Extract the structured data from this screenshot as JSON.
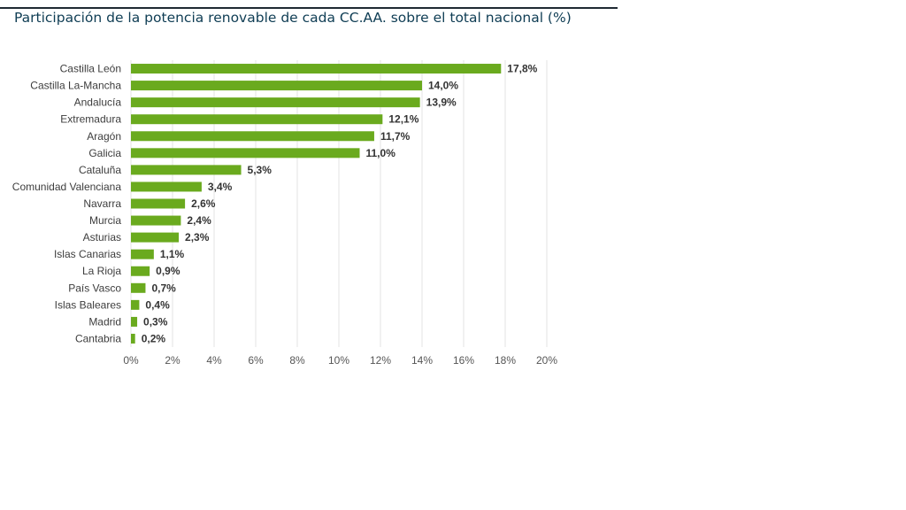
{
  "chart_data": {
    "type": "bar",
    "orientation": "horizontal",
    "title": "Participación de la potencia renovable de cada CC.AA. sobre el total nacional (%)",
    "categories": [
      "Castilla León",
      "Castilla La-Mancha",
      "Andalucía",
      "Extremadura",
      "Aragón",
      "Galicia",
      "Cataluña",
      "Comunidad Valenciana",
      "Navarra",
      "Murcia",
      "Asturias",
      "Islas Canarias",
      "La Rioja",
      "País Vasco",
      "Islas Baleares",
      "Madrid",
      "Cantabria"
    ],
    "values": [
      17.8,
      14.0,
      13.9,
      12.1,
      11.7,
      11.0,
      5.3,
      3.4,
      2.6,
      2.4,
      2.3,
      1.1,
      0.9,
      0.7,
      0.4,
      0.3,
      0.2
    ],
    "value_labels": [
      "17,8%",
      "14,0%",
      "13,9%",
      "12,1%",
      "11,7%",
      "11,0%",
      "5,3%",
      "3,4%",
      "2,6%",
      "2,4%",
      "2,3%",
      "1,1%",
      "0,9%",
      "0,7%",
      "0,4%",
      "0,3%",
      "0,2%"
    ],
    "xlim": [
      0,
      20
    ],
    "xticks": [
      0,
      2,
      4,
      6,
      8,
      10,
      12,
      14,
      16,
      18,
      20
    ],
    "xtick_labels": [
      "0%",
      "2%",
      "4%",
      "6%",
      "8%",
      "10%",
      "12%",
      "14%",
      "16%",
      "18%",
      "20%"
    ],
    "xlabel": "",
    "ylabel": "",
    "grid": true,
    "legend": "none",
    "bar_color": "#6aaa1e",
    "grid_color": "#e3e3e3"
  }
}
